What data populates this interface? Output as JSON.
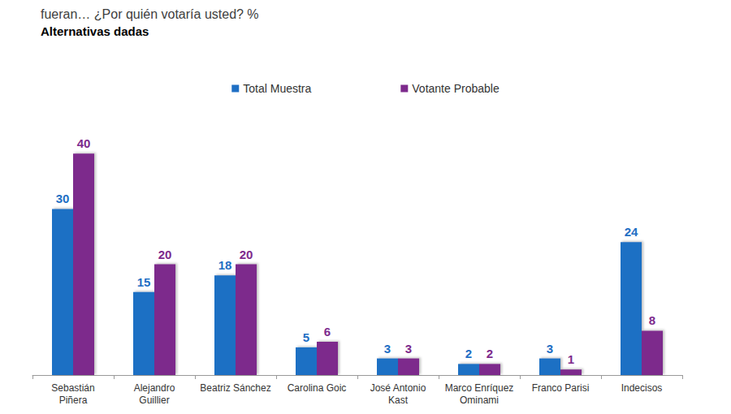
{
  "chart_data": {
    "type": "bar",
    "title": "fueran… ¿Por quién votaría usted? %",
    "subtitle": "Alternativas dadas",
    "categories": [
      "Sebastián\nPiñera",
      "Alejandro\nGuillier",
      "Beatriz Sánchez",
      "Carolina Goic",
      "José Antonio\nKast",
      "Marco Enríquez\nOminami",
      "Franco Parisi",
      "Indecisos"
    ],
    "series": [
      {
        "name": "Total Muestra",
        "color": "#1f6fc4",
        "values": [
          30,
          15,
          18,
          5,
          3,
          2,
          3,
          24
        ]
      },
      {
        "name": "Votante Probable",
        "color": "#7d2a8c",
        "values": [
          40,
          20,
          20,
          6,
          3,
          2,
          1,
          8
        ]
      }
    ],
    "ylim": [
      0,
      50
    ],
    "yticks": [
      0,
      10,
      20,
      30,
      40,
      50
    ],
    "grid": false,
    "legend": "top",
    "data_labels": true,
    "tick_labels": "x"
  }
}
